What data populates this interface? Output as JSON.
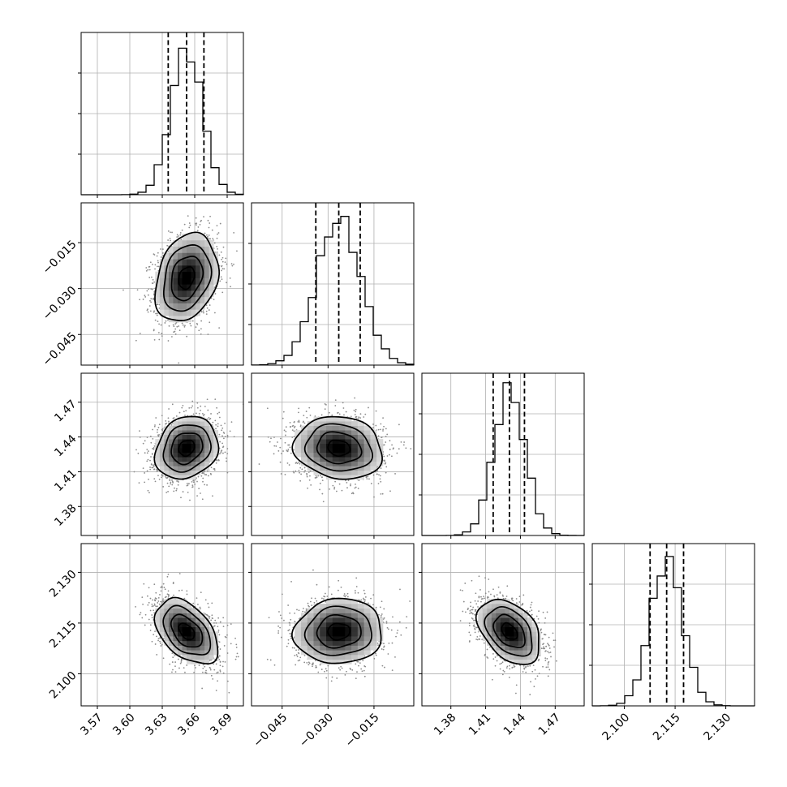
{
  "chart_data": {
    "type": "corner",
    "grid": true,
    "parameters": [
      {
        "range": [
          3.555,
          3.705
        ],
        "ticks": [
          3.57,
          3.6,
          3.63,
          3.66,
          3.69
        ],
        "tick_labels": [
          "3.57",
          "3.60",
          "3.63",
          "3.66",
          "3.69"
        ],
        "mean": 3.6525,
        "sd": 0.0145,
        "quantiles": [
          3.6355,
          3.6525,
          3.6685
        ]
      },
      {
        "range": [
          -0.055,
          -0.002
        ],
        "ticks": [
          -0.045,
          -0.03,
          -0.015
        ],
        "tick_labels": [
          "−0.045",
          "−0.030",
          "−0.015"
        ],
        "mean": -0.0265,
        "sd": 0.0072,
        "quantiles": [
          -0.034,
          -0.0265,
          -0.0195
        ]
      },
      {
        "range": [
          1.355,
          1.495
        ],
        "ticks": [
          1.38,
          1.41,
          1.44,
          1.47
        ],
        "tick_labels": [
          "1.38",
          "1.41",
          "1.44",
          "1.47"
        ],
        "mean": 1.4305,
        "sd": 0.0135,
        "quantiles": [
          1.4165,
          1.4305,
          1.4435
        ]
      },
      {
        "range": [
          2.0905,
          2.1385
        ],
        "ticks": [
          2.1,
          2.115,
          2.13
        ],
        "tick_labels": [
          "2.100",
          "2.115",
          "2.130"
        ],
        "mean": 2.1125,
        "sd": 0.0048,
        "quantiles": [
          2.1076,
          2.1125,
          2.1175
        ]
      }
    ],
    "correlations": [
      {
        "x": 0,
        "y": 1,
        "rho": 0.25
      },
      {
        "x": 0,
        "y": 2,
        "rho": 0.18
      },
      {
        "x": 1,
        "y": 2,
        "rho": -0.12
      },
      {
        "x": 0,
        "y": 3,
        "rho": -0.45
      },
      {
        "x": 1,
        "y": 3,
        "rho": 0.05
      },
      {
        "x": 2,
        "y": 3,
        "rho": -0.4
      }
    ],
    "histogram": {
      "bins": 20,
      "peak_density": 1.0,
      "ytick_fractions": [
        0.25,
        0.5,
        0.75
      ]
    },
    "contour_sigmas": [
      0.5,
      1.0,
      1.5,
      2.0
    ],
    "samples_per_panel": 1800
  },
  "colors": {
    "axis": "#000000",
    "grid": "#b0b0b0",
    "points": "#8c8c8c",
    "density_max": "#000000",
    "density_min": "#ffffff"
  }
}
